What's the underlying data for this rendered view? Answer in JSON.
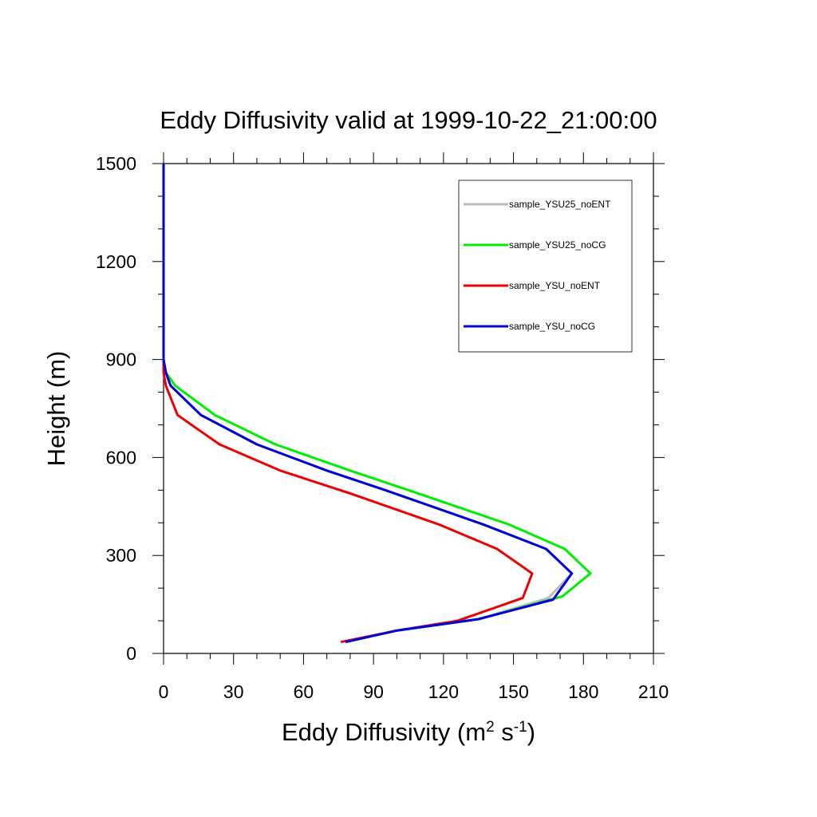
{
  "chart_data": {
    "type": "line",
    "title": "Eddy Diffusivity valid at 1999-10-22_21:00:00",
    "xlabel": {
      "base": "Eddy Diffusivity (m",
      "sup1": "2",
      "mid": " s",
      "sup2": "-1",
      "end": ")"
    },
    "ylabel": "Height (m)",
    "xlim": [
      0,
      210
    ],
    "ylim": [
      0,
      1500
    ],
    "xticks": [
      0,
      30,
      60,
      90,
      120,
      150,
      180,
      210
    ],
    "yticks": [
      0,
      300,
      600,
      900,
      1200,
      1500
    ],
    "legend_position": "top-right",
    "grid": false,
    "series": [
      {
        "name": "sample_YSU25_noENT",
        "color": "#bbbbbb",
        "points": [
          [
            78,
            35
          ],
          [
            100,
            70
          ],
          [
            135,
            105
          ],
          [
            165,
            170
          ],
          [
            175,
            245
          ],
          [
            164,
            320
          ],
          [
            137,
            395
          ],
          [
            95,
            500
          ],
          [
            70,
            560
          ],
          [
            40,
            640
          ],
          [
            16,
            730
          ],
          [
            3,
            820
          ],
          [
            1,
            860
          ],
          [
            0,
            900
          ],
          [
            0,
            1000
          ],
          [
            0,
            1200
          ],
          [
            0,
            1500
          ]
        ]
      },
      {
        "name": "sample_YSU25_noCG",
        "color": "#00ee00",
        "points": [
          [
            78,
            35
          ],
          [
            100,
            70
          ],
          [
            135,
            105
          ],
          [
            171,
            175
          ],
          [
            183,
            245
          ],
          [
            172,
            320
          ],
          [
            148,
            395
          ],
          [
            105,
            500
          ],
          [
            80,
            560
          ],
          [
            48,
            640
          ],
          [
            22,
            730
          ],
          [
            5,
            820
          ],
          [
            1,
            860
          ],
          [
            0,
            900
          ],
          [
            0,
            1000
          ],
          [
            0,
            1200
          ],
          [
            0,
            1500
          ]
        ]
      },
      {
        "name": "sample_YSU_noENT",
        "color": "#ee0000",
        "points": [
          [
            76,
            35
          ],
          [
            100,
            70
          ],
          [
            126,
            100
          ],
          [
            154,
            170
          ],
          [
            158,
            245
          ],
          [
            143,
            320
          ],
          [
            118,
            395
          ],
          [
            80,
            490
          ],
          [
            50,
            560
          ],
          [
            24,
            640
          ],
          [
            6,
            730
          ],
          [
            1,
            820
          ],
          [
            0,
            860
          ],
          [
            0,
            900
          ],
          [
            0,
            1000
          ],
          [
            0,
            1200
          ],
          [
            0,
            1500
          ]
        ]
      },
      {
        "name": "sample_YSU_noCG",
        "color": "#0000dd",
        "points": [
          [
            78,
            35
          ],
          [
            100,
            70
          ],
          [
            135,
            105
          ],
          [
            167,
            165
          ],
          [
            175,
            245
          ],
          [
            164,
            320
          ],
          [
            137,
            395
          ],
          [
            95,
            500
          ],
          [
            70,
            560
          ],
          [
            40,
            640
          ],
          [
            16,
            730
          ],
          [
            3,
            820
          ],
          [
            1,
            860
          ],
          [
            0,
            900
          ],
          [
            0,
            1000
          ],
          [
            0,
            1200
          ],
          [
            0,
            1500
          ]
        ]
      }
    ]
  }
}
